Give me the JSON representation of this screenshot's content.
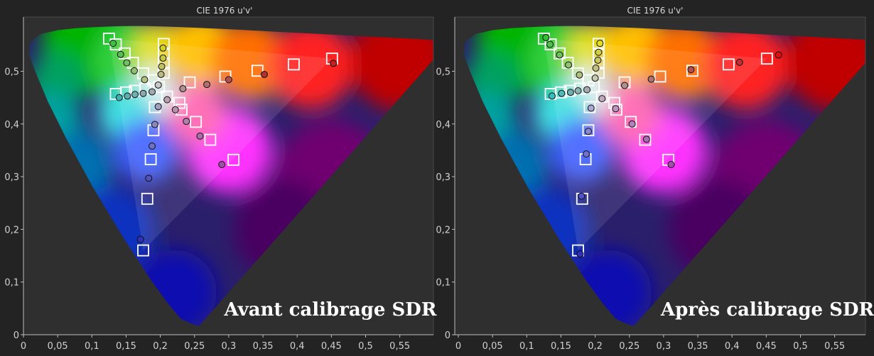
{
  "colors": {
    "background": "#232323",
    "plot_bg": "#2f2f2f",
    "frame": "#bdbdbd",
    "marker": "#ffffff"
  },
  "chart_data": [
    {
      "type": "scatter",
      "title": "CIE 1976 u'v'",
      "caption": "Avant calibrage SDR",
      "xlim": [
        0,
        0.6
      ],
      "ylim": [
        0,
        0.6
      ],
      "x_ticks": [
        "0",
        "0,05",
        "0,1",
        "0,15",
        "0,2",
        "0,25",
        "0,3",
        "0,35",
        "0,4",
        "0,45",
        "0,5",
        "0,55"
      ],
      "y_ticks": [
        "0",
        "0,1",
        "0,2",
        "0,3",
        "0,4",
        "0,5"
      ],
      "grid": false,
      "targets": [
        [
          0.125,
          0.562
        ],
        [
          0.135,
          0.551
        ],
        [
          0.148,
          0.534
        ],
        [
          0.16,
          0.516
        ],
        [
          0.175,
          0.496
        ],
        [
          0.19,
          0.483
        ],
        [
          0.205,
          0.552
        ],
        [
          0.205,
          0.534
        ],
        [
          0.205,
          0.515
        ],
        [
          0.205,
          0.497
        ],
        [
          0.198,
          0.47
        ],
        [
          0.135,
          0.457
        ],
        [
          0.15,
          0.46
        ],
        [
          0.163,
          0.463
        ],
        [
          0.178,
          0.467
        ],
        [
          0.21,
          0.452
        ],
        [
          0.228,
          0.44
        ],
        [
          0.243,
          0.479
        ],
        [
          0.295,
          0.49
        ],
        [
          0.342,
          0.501
        ],
        [
          0.395,
          0.513
        ],
        [
          0.451,
          0.524
        ],
        [
          0.231,
          0.427
        ],
        [
          0.252,
          0.404
        ],
        [
          0.273,
          0.37
        ],
        [
          0.307,
          0.332
        ],
        [
          0.192,
          0.432
        ],
        [
          0.19,
          0.388
        ],
        [
          0.186,
          0.333
        ],
        [
          0.181,
          0.258
        ],
        [
          0.175,
          0.16
        ]
      ],
      "measured": [
        {
          "u": 0.131,
          "v": 0.553,
          "c": "#40c040"
        },
        {
          "u": 0.142,
          "v": 0.532,
          "c": "#55c050"
        },
        {
          "u": 0.151,
          "v": 0.516,
          "c": "#70c060"
        },
        {
          "u": 0.162,
          "v": 0.501,
          "c": "#90c070"
        },
        {
          "u": 0.177,
          "v": 0.484,
          "c": "#b0c080"
        },
        {
          "u": 0.204,
          "v": 0.544,
          "c": "#d0d020"
        },
        {
          "u": 0.204,
          "v": 0.525,
          "c": "#c8c840"
        },
        {
          "u": 0.202,
          "v": 0.509,
          "c": "#c0c060"
        },
        {
          "u": 0.201,
          "v": 0.494,
          "c": "#b8b880"
        },
        {
          "u": 0.197,
          "v": 0.474,
          "c": "#c8c8c8"
        },
        {
          "u": 0.14,
          "v": 0.45,
          "c": "#40b0b0"
        },
        {
          "u": 0.152,
          "v": 0.453,
          "c": "#5ab0b0"
        },
        {
          "u": 0.163,
          "v": 0.456,
          "c": "#70b0b0"
        },
        {
          "u": 0.175,
          "v": 0.458,
          "c": "#8aa8b0"
        },
        {
          "u": 0.188,
          "v": 0.461,
          "c": "#a0a8b0"
        },
        {
          "u": 0.233,
          "v": 0.467,
          "c": "#b09090"
        },
        {
          "u": 0.268,
          "v": 0.475,
          "c": "#b07070"
        },
        {
          "u": 0.3,
          "v": 0.484,
          "c": "#b05050"
        },
        {
          "u": 0.352,
          "v": 0.494,
          "c": "#b03030"
        },
        {
          "u": 0.453,
          "v": 0.515,
          "c": "#c02020"
        },
        {
          "u": 0.21,
          "v": 0.446,
          "c": "#b8a0b0"
        },
        {
          "u": 0.222,
          "v": 0.427,
          "c": "#b890b0"
        },
        {
          "u": 0.238,
          "v": 0.405,
          "c": "#b080b0"
        },
        {
          "u": 0.258,
          "v": 0.377,
          "c": "#a870a8"
        },
        {
          "u": 0.29,
          "v": 0.323,
          "c": "#a050a0"
        },
        {
          "u": 0.197,
          "v": 0.433,
          "c": "#a0a0c0"
        },
        {
          "u": 0.192,
          "v": 0.399,
          "c": "#8888c0"
        },
        {
          "u": 0.188,
          "v": 0.358,
          "c": "#7070c0"
        },
        {
          "u": 0.183,
          "v": 0.297,
          "c": "#5050c0"
        },
        {
          "u": 0.171,
          "v": 0.181,
          "c": "#3030c0"
        }
      ]
    },
    {
      "type": "scatter",
      "title": "CIE 1976 u'v'",
      "caption": "Après calibrage SDR",
      "xlim": [
        0,
        0.6
      ],
      "ylim": [
        0,
        0.6
      ],
      "x_ticks": [
        "0",
        "0,05",
        "0,1",
        "0,15",
        "0,2",
        "0,25",
        "0,3",
        "0,35",
        "0,4",
        "0,45",
        "0,5",
        "0,55"
      ],
      "y_ticks": [
        "0",
        "0,1",
        "0,2",
        "0,3",
        "0,4",
        "0,5"
      ],
      "grid": false,
      "targets": [
        [
          0.125,
          0.562
        ],
        [
          0.135,
          0.551
        ],
        [
          0.148,
          0.534
        ],
        [
          0.16,
          0.516
        ],
        [
          0.175,
          0.496
        ],
        [
          0.19,
          0.483
        ],
        [
          0.205,
          0.552
        ],
        [
          0.205,
          0.534
        ],
        [
          0.205,
          0.515
        ],
        [
          0.205,
          0.497
        ],
        [
          0.198,
          0.47
        ],
        [
          0.135,
          0.457
        ],
        [
          0.15,
          0.46
        ],
        [
          0.163,
          0.463
        ],
        [
          0.178,
          0.467
        ],
        [
          0.21,
          0.452
        ],
        [
          0.228,
          0.44
        ],
        [
          0.243,
          0.479
        ],
        [
          0.295,
          0.49
        ],
        [
          0.342,
          0.501
        ],
        [
          0.395,
          0.513
        ],
        [
          0.451,
          0.524
        ],
        [
          0.231,
          0.427
        ],
        [
          0.252,
          0.404
        ],
        [
          0.273,
          0.37
        ],
        [
          0.307,
          0.332
        ],
        [
          0.192,
          0.432
        ],
        [
          0.19,
          0.388
        ],
        [
          0.186,
          0.333
        ],
        [
          0.181,
          0.258
        ],
        [
          0.175,
          0.16
        ]
      ],
      "measured": [
        {
          "u": 0.128,
          "v": 0.564,
          "c": "#30c030"
        },
        {
          "u": 0.134,
          "v": 0.551,
          "c": "#50c050"
        },
        {
          "u": 0.148,
          "v": 0.531,
          "c": "#70c060"
        },
        {
          "u": 0.161,
          "v": 0.512,
          "c": "#90c070"
        },
        {
          "u": 0.177,
          "v": 0.493,
          "c": "#b0c080"
        },
        {
          "u": 0.207,
          "v": 0.553,
          "c": "#e0e020"
        },
        {
          "u": 0.205,
          "v": 0.536,
          "c": "#d0d040"
        },
        {
          "u": 0.204,
          "v": 0.521,
          "c": "#c8c860"
        },
        {
          "u": 0.201,
          "v": 0.506,
          "c": "#c0c080"
        },
        {
          "u": 0.2,
          "v": 0.487,
          "c": "#c8c8b0"
        },
        {
          "u": 0.137,
          "v": 0.453,
          "c": "#30c0c0"
        },
        {
          "u": 0.151,
          "v": 0.458,
          "c": "#50b8b8"
        },
        {
          "u": 0.164,
          "v": 0.46,
          "c": "#70b0b0"
        },
        {
          "u": 0.175,
          "v": 0.463,
          "c": "#90b0b0"
        },
        {
          "u": 0.188,
          "v": 0.465,
          "c": "#a8a8b0"
        },
        {
          "u": 0.243,
          "v": 0.473,
          "c": "#b09090"
        },
        {
          "u": 0.282,
          "v": 0.485,
          "c": "#b07070"
        },
        {
          "u": 0.34,
          "v": 0.503,
          "c": "#b05050"
        },
        {
          "u": 0.411,
          "v": 0.517,
          "c": "#c03030"
        },
        {
          "u": 0.468,
          "v": 0.531,
          "c": "#e01010"
        },
        {
          "u": 0.21,
          "v": 0.448,
          "c": "#c0a8c0"
        },
        {
          "u": 0.23,
          "v": 0.429,
          "c": "#b898c0"
        },
        {
          "u": 0.254,
          "v": 0.4,
          "c": "#b080c0"
        },
        {
          "u": 0.275,
          "v": 0.371,
          "c": "#a870b0"
        },
        {
          "u": 0.311,
          "v": 0.323,
          "c": "#a050a8"
        },
        {
          "u": 0.194,
          "v": 0.43,
          "c": "#a8a8d0"
        },
        {
          "u": 0.19,
          "v": 0.386,
          "c": "#8888d0"
        },
        {
          "u": 0.187,
          "v": 0.343,
          "c": "#7070d0"
        },
        {
          "u": 0.18,
          "v": 0.263,
          "c": "#5050d0"
        },
        {
          "u": 0.178,
          "v": 0.153,
          "c": "#3030c0"
        }
      ]
    }
  ]
}
